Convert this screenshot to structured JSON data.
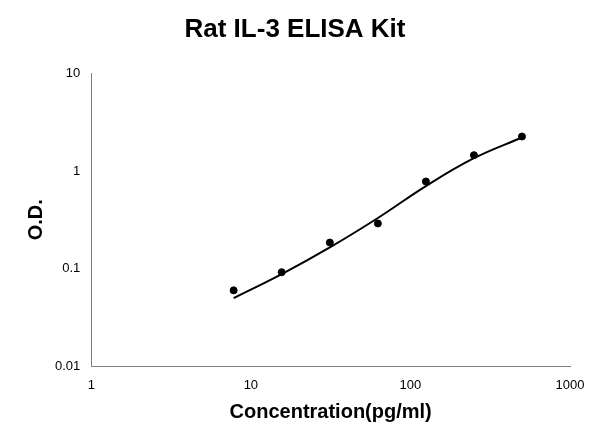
{
  "chart_data": {
    "type": "scatter",
    "title": "Rat IL-3 ELISA Kit",
    "x_label": "Concentration(pg/ml)",
    "y_label": "O.D.",
    "log": true,
    "grid": false,
    "x": [
      7.8,
      15.6,
      31.25,
      62.5,
      125,
      250,
      500
    ],
    "series": [
      {
        "type": "scatter",
        "marker": "circle",
        "color": "#000000",
        "values": [
          0.06,
          0.092,
          0.185,
          0.29,
          0.78,
          1.45,
          2.25
        ]
      },
      {
        "type": "line",
        "line_style": "solid",
        "color": "#000000",
        "values": [
          0.05,
          0.088,
          0.165,
          0.33,
          0.7,
          1.35,
          2.2
        ]
      }
    ],
    "xlim": [
      1,
      1000
    ],
    "xticks": [
      1,
      10,
      100,
      1000
    ],
    "ylim": [
      0.01,
      10
    ],
    "yticks": [
      0.01,
      0.1,
      1,
      10
    ]
  }
}
